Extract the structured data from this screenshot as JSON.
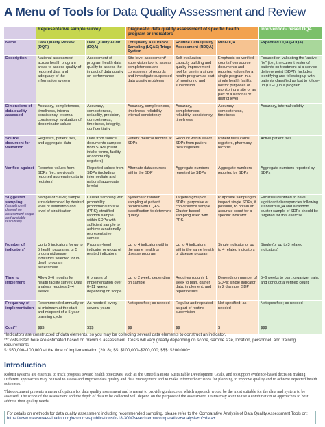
{
  "title": {
    "bold": "A Menu of Tools",
    "rest": " for Data Quality Assessment and Review"
  },
  "table": {
    "groups": [
      {
        "label": "Representative sample survey",
        "span": 2
      },
      {
        "label": "Diagnostic data quality assessment of specific health program or indicators",
        "span": 3
      },
      {
        "label": "Intervention- based DQA",
        "span": 1
      }
    ],
    "name_label": "Name",
    "columns": [
      "Data Quality Review (DQR)",
      "Data Quality Audit (DQA)",
      "Lot Quality Assurance Sampling (LQAS) Triage System",
      "Routine Data Quality Assessment (RDQA)",
      "Mini-DQA",
      "Expedited DQA (EDQA)"
    ],
    "rows": [
      {
        "label": "Description",
        "cells": [
          "National assessment across health program areas to assess quality of reported data and adequacy of the information system",
          "Assessment of program health data quality to assess the impact of data quality on performance",
          "Site-level assessment/ supervision tool to assess completeness and consistency of records and investigate suspected data quality problems",
          "Self-evaluation capacity building and quality improvement tool for use in a single health program as part of monitoring and supervision",
          "Emphasis on verified counts from source documents and reported values for a single program in a single health facility, not for purposes of monitoring a site or as part of a national or district level",
          "Focused on validating the “active file” (i.e., the current roster of patients on treatment at a service delivery point [SDP]). Includes identifying and following up with patients classified as lost to follow-up (LTFU) in a program."
        ]
      },
      {
        "label": "Dimensions of data quality assessed",
        "cells": [
          "Accuracy, completeness, timeliness, internal consistency, external consistency, evaluation of denominator values",
          "Accuracy, completeness, reliability, precision, completeness, timeliness, integrity, confidentiality",
          "Accuracy, completeness, timeliness, reliability, internal consistency",
          "Accuracy, completeness, reliability, consistency, timeliness",
          "Accuracy, completeness, timeliness",
          "Accuracy, internal validity"
        ]
      },
      {
        "label": "Source document for validation",
        "cells": [
          "Registers, patient files, and aggregate data",
          "Data from source documents sampled from SDPs (client intake forms, facility or community registers)",
          "Patient medical records at SDPs",
          "Recount within select SDPs from patient files/ registers",
          "Patient files/ cards, registers, pharmacy records",
          "Active patient files"
        ]
      },
      {
        "label": "Verified against",
        "cells": [
          "Reported values from SDPs (i.e., previously reported aggregate data in registers)",
          "Reported values from SDPs (including intermediate and national aggregate levels)",
          "Alternate data sources within the SDP",
          "Aggregate numbers reported by SDPs",
          "Aggregate numbers reported by SDPs",
          "Aggregate numbers reported by SDPs"
        ]
      },
      {
        "label": "Suggested sampling",
        "sublabel": "(sampling will depend on assessment scope and available resources)",
        "cells": [
          "Sample of SDPs; sample size determined by desired level of estimation and level of stratification",
          "Cluster sampling with probability proportional to size (PPS); stratified random sample within SDPs with sufficient sample to achieve a nationally representative sample",
          "Systematic random sampling of patient records with LQAS classification to determine quality",
          "Targeted group of SDPs; purposive or convenience sample. Cluster-based sampling used with PPS.",
          "Purposive sampling to inspect single SDPs, if possible, to obtain an accurate count for a specific indicator",
          "Facilities identified to have significant discrepancies following standard DQA and a random cluster sample of SDPs should be targeted for this exercise."
        ]
      },
      {
        "label": "Number of indicators*",
        "cells": [
          "Up to 5 indicators for up to 5 health programs, or 5 program/disease indicators selected for in-depth program assessment",
          "Program-level indicator or group of related indicators",
          "Up to 4 indicators within the same health or disease program",
          "Up to 4 indicators within the same health or disease program",
          "Single indicator or up to 4 related indicators",
          "Single (or up to 3 related indicators)"
        ]
      },
      {
        "label": "Time to implement",
        "cells": [
          "Allow 3–6 months for health facility survey. Data analysis requires 2–4 weeks",
          "6 phases of implementation over 6–11 weeks, depending on scope",
          "Up to 2 week, depending on sample",
          "Requires roughly 1 week to plan, gather data, implement, and report results",
          "Depends on number of SDPs; single indicator in 2 days per SDP",
          "5–6 weeks to plan, organize, train, and conduct a verified count"
        ]
      },
      {
        "label": "Frequency of implementation",
        "cells": [
          "Recommended annually or at minimum at the start and midpoint of a 5-year planning cycle",
          "As needed, every several years",
          "Not specified; as needed",
          "Regular and repeated as part of routine supervision",
          "Not specified; as needed",
          "Not specified; as needed"
        ]
      },
      {
        "label": "Cost**",
        "cells": [
          "$$$",
          "$$$",
          "$$",
          "$$",
          "$",
          "$$$"
        ]
      }
    ]
  },
  "footnotes": [
    "*Indicators are constructed of data elements, so you may be collecting several data elements to construct an indicator.",
    "**Costs listed here are estimated based on previous assessment. Costs will vary greatly depending on scope, sample size, location, personnel, and training requirements",
    "$: $50,000–100,000 at the time of implementation (2018); $$: $100,000–$200,000; $$$: $200,000+"
  ],
  "introduction": {
    "heading": "Introduction",
    "paragraphs": [
      "Robust systems are essential to track progress toward health objectives, such as the United Nations Sustainable Development Goals, and to support evidence-based decision making. Different approaches may be used to assess and improve data quality and data management and to make informed decisions for planning to improve quality and to achieve expected health outcomes.",
      "This document presents a menu of options for data quality assessment and is meant to provide guidance on which approach would be the most suitable for the data and system to be assessed. The scope of the assessment and the depth of data to be collected will depend on the purpose of the assessment. Teams may want to use a combination of approaches to best address their quality needs."
    ]
  },
  "note": {
    "text": "For details on methods for data quality assessment including recommended sampling, please refer to the Comparative Analysis of Data Quality Assessment Tools on:",
    "url": "https://www.measureevaluation.org/resources/publications/tr-18-300/?searchterm=comparative+analysis+of+data+"
  }
}
